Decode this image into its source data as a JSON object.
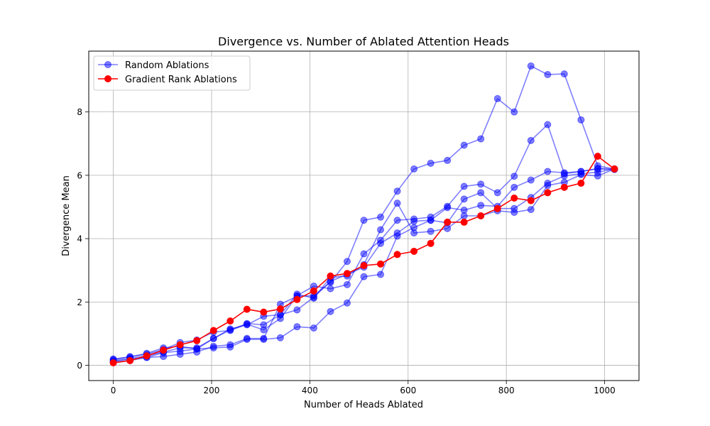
{
  "chart_data": {
    "type": "line",
    "title": "Divergence vs. Number of Ablated Attention Heads",
    "xlabel": "Number of Heads Ablated",
    "ylabel": "Divergence Mean",
    "xlim": [
      -50,
      1070
    ],
    "ylim": [
      -0.48,
      9.92
    ],
    "xticks": [
      0,
      200,
      400,
      600,
      800,
      1000
    ],
    "yticks": [
      0,
      2,
      4,
      6,
      8
    ],
    "grid": true,
    "legend_position": "top-left",
    "legend": [
      "Random Ablations",
      "Gradient Rank Ablations"
    ],
    "x": [
      0,
      34,
      68,
      102,
      136,
      170,
      204,
      238,
      272,
      306,
      340,
      374,
      408,
      442,
      476,
      510,
      544,
      578,
      612,
      646,
      680,
      714,
      748,
      782,
      816,
      850,
      884,
      918,
      952,
      986,
      1020
    ],
    "random_series": [
      {
        "color": "#0000ff",
        "values": [
          0.2,
          0.27,
          0.35,
          0.5,
          0.72,
          0.8,
          1.05,
          1.1,
          1.3,
          1.12,
          1.48,
          2.2,
          2.5,
          2.42,
          2.55,
          3.52,
          3.95,
          4.58,
          4.62,
          4.68,
          5.02,
          5.65,
          5.72,
          5.45,
          5.97,
          7.1,
          7.6,
          6.05,
          6.12,
          6.2,
          6.18
        ]
      },
      {
        "color": "#0000ff",
        "values": [
          0.15,
          0.22,
          0.3,
          0.42,
          0.55,
          0.55,
          0.85,
          1.15,
          1.28,
          1.55,
          1.6,
          2.25,
          2.12,
          2.78,
          2.82,
          3.18,
          4.28,
          5.12,
          4.18,
          4.23,
          4.32,
          4.72,
          4.72,
          4.88,
          4.83,
          4.92,
          5.68,
          5.78,
          6.02,
          5.98,
          6.2
        ]
      },
      {
        "color": "#0000ff",
        "values": [
          0.12,
          0.2,
          0.25,
          0.28,
          0.35,
          0.42,
          0.6,
          0.65,
          0.85,
          0.85,
          1.93,
          2.18,
          2.2,
          2.62,
          3.28,
          4.58,
          4.68,
          5.5,
          6.2,
          6.38,
          6.47,
          6.95,
          7.15,
          8.42,
          8.0,
          9.45,
          9.18,
          9.2,
          7.75,
          6.3,
          6.2
        ]
      },
      {
        "color": "#0000ff",
        "values": [
          0.1,
          0.15,
          0.25,
          0.4,
          0.45,
          0.52,
          0.55,
          0.58,
          0.82,
          0.82,
          0.87,
          1.22,
          1.18,
          1.7,
          1.97,
          2.8,
          2.87,
          4.08,
          4.35,
          4.58,
          4.98,
          4.9,
          5.05,
          5.02,
          5.62,
          5.85,
          6.12,
          6.08,
          6.12,
          6.22,
          6.2
        ]
      },
      {
        "color": "#0000ff",
        "values": [
          0.18,
          0.27,
          0.38,
          0.55,
          0.6,
          0.52,
          0.85,
          1.12,
          1.32,
          1.28,
          1.6,
          1.75,
          2.15,
          2.65,
          2.88,
          3.1,
          3.85,
          4.18,
          4.55,
          4.58,
          4.5,
          5.25,
          5.45,
          4.95,
          4.95,
          5.3,
          5.75,
          5.98,
          6.05,
          6.1,
          6.2
        ]
      }
    ],
    "gradient_series": {
      "color": "#ff0000",
      "values": [
        0.08,
        0.15,
        0.3,
        0.48,
        0.65,
        0.78,
        1.1,
        1.4,
        1.77,
        1.68,
        1.78,
        2.08,
        2.35,
        2.82,
        2.9,
        3.15,
        3.2,
        3.5,
        3.6,
        3.85,
        4.52,
        4.52,
        4.72,
        4.95,
        5.28,
        5.2,
        5.45,
        5.62,
        5.75,
        6.6,
        6.2
      ]
    }
  }
}
